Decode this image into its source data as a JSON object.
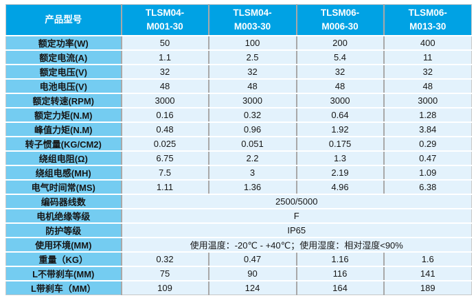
{
  "colors": {
    "header_bg": "#00a2e4",
    "header_text": "#ffffff",
    "label_bg": "#74ccf1",
    "cell_bg": "#e3f2fc",
    "grid_vertical": "#a8a8a8",
    "grid_horizontal": "#ffffff",
    "body_text": "#161616"
  },
  "table": {
    "header": {
      "product_model": "产品型号",
      "models": [
        {
          "line1": "TLSM04-",
          "line2": "M001-30"
        },
        {
          "line1": "TLSM04-",
          "line2": "M003-30"
        },
        {
          "line1": "TLSM06-",
          "line2": "M006-30"
        },
        {
          "line1": "TLSM06-",
          "line2": "M013-30"
        }
      ]
    },
    "rows": [
      {
        "label": "额定功率(W)",
        "values": [
          "50",
          "100",
          "200",
          "400"
        ]
      },
      {
        "label": "额定电流(A)",
        "values": [
          "1.1",
          "2.5",
          "5.4",
          "11"
        ]
      },
      {
        "label": "额定电压(V)",
        "values": [
          "32",
          "32",
          "32",
          "32"
        ]
      },
      {
        "label": "电池电压(V)",
        "values": [
          "48",
          "48",
          "48",
          "48"
        ]
      },
      {
        "label": "额定转速(RPM)",
        "values": [
          "3000",
          "3000",
          "3000",
          "3000"
        ]
      },
      {
        "label": "额定力矩(N.M)",
        "values": [
          "0.16",
          "0.32",
          "0.64",
          "1.28"
        ]
      },
      {
        "label": "峰值力矩(N.M)",
        "values": [
          "0.48",
          "0.96",
          "1.92",
          "3.84"
        ]
      },
      {
        "label": "转子惯量(KG/CM2)",
        "values": [
          "0.025",
          "0.051",
          "0.175",
          "0.29"
        ]
      },
      {
        "label": "绕组电阻(Ω)",
        "values": [
          "6.75",
          "2.2",
          "1.3",
          "0.47"
        ]
      },
      {
        "label": "绕组电感(MH)",
        "values": [
          "7.5",
          "3",
          "2.19",
          "1.09"
        ]
      },
      {
        "label": "电气时间常(MS)",
        "values": [
          "1.11",
          "1.36",
          "4.96",
          "6.38"
        ]
      },
      {
        "label": "编码器线数",
        "span_value": "2500/5000"
      },
      {
        "label": "电机绝缘等级",
        "span_value": "F"
      },
      {
        "label": "防护等级",
        "span_value": "IP65"
      },
      {
        "label": "使用环境(MM)",
        "span_value": "使用温度：-20℃ - +40℃；使用湿度：相对湿度<90%"
      },
      {
        "label": "重量（KG）",
        "values": [
          "0.32",
          "0.47",
          "1.16",
          "1.6"
        ]
      },
      {
        "label": "L不带刹车(MM)",
        "values": [
          "75",
          "90",
          "116",
          "141"
        ]
      },
      {
        "label": "L带刹车（MM）",
        "values": [
          "109",
          "124",
          "164",
          "189"
        ]
      }
    ]
  }
}
